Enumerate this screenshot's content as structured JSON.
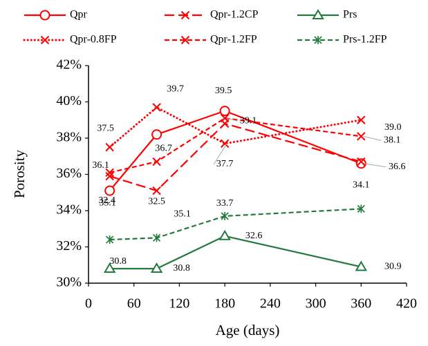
{
  "chart_data": {
    "type": "line",
    "x_label": "Age (days)",
    "y_label": "Porosity",
    "x": [
      28,
      90,
      180,
      360
    ],
    "xlim": [
      0,
      420
    ],
    "xticks": [
      0,
      60,
      120,
      180,
      240,
      300,
      360,
      420
    ],
    "ylim": [
      30,
      42
    ],
    "yticks": [
      {
        "value": 30,
        "label": "30%"
      },
      {
        "value": 32,
        "label": "32%"
      },
      {
        "value": 34,
        "label": "34%"
      },
      {
        "value": 36,
        "label": "36%"
      },
      {
        "value": 38,
        "label": "38%"
      },
      {
        "value": 40,
        "label": "40%"
      },
      {
        "value": 42,
        "label": "42%"
      }
    ],
    "grid": false,
    "legend": "top",
    "series": [
      {
        "name": "Qpr",
        "color": "#ff0000",
        "marker": "circle",
        "dash": "solid",
        "values": [
          35.1,
          38.2,
          39.5,
          36.6
        ],
        "value_labels": [
          "35.1",
          null,
          "39.5",
          "36.6"
        ]
      },
      {
        "name": "Qpr-1.2CP",
        "color": "#ff0000",
        "marker": "x",
        "dash": "long-dash",
        "values": [
          35.9,
          35.1,
          38.8,
          36.7
        ],
        "value_labels": [
          null,
          "35.1",
          null,
          null
        ]
      },
      {
        "name": "Prs",
        "color": "#217a3c",
        "marker": "triangle",
        "dash": "solid",
        "values": [
          30.8,
          30.8,
          32.6,
          30.9
        ],
        "value_labels": [
          "30.8",
          "30.8",
          "32.6",
          "30.9"
        ]
      },
      {
        "name": "Qpr-0.8FP",
        "color": "#ff0000",
        "marker": "x",
        "dash": "dot",
        "values": [
          37.5,
          39.7,
          37.7,
          39.0
        ],
        "value_labels": [
          "37.5",
          "39.7",
          "37.7",
          "39.0"
        ]
      },
      {
        "name": "Qpr-1.2FP",
        "color": "#ff0000",
        "marker": "x",
        "dash": "dash",
        "values": [
          36.1,
          36.7,
          39.1,
          38.1
        ],
        "value_labels": [
          "36.1",
          "36.7",
          "39.1",
          "38.1"
        ]
      },
      {
        "name": "Prs-1.2FP",
        "color": "#217a3c",
        "marker": "star",
        "dash": "dash",
        "values": [
          32.4,
          32.5,
          33.7,
          34.1
        ],
        "value_labels": [
          "32.4",
          "32.5",
          "33.7",
          "34.1"
        ]
      }
    ]
  }
}
